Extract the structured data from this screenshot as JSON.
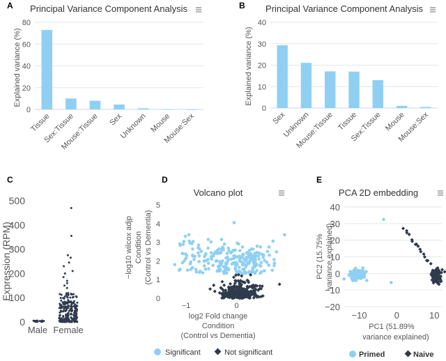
{
  "colors": {
    "bar": "#8fd0f2",
    "significant": "#8fd0f2",
    "not_significant": "#2f3b4c",
    "primed": "#8fd0f2",
    "naive": "#2f3b4c",
    "scatter_c": "#2f3b4c"
  },
  "icons": {
    "menu": "hamburger-menu-icon"
  },
  "chart_data": [
    {
      "panel": "A",
      "type": "bar",
      "title": "Principal Variance Component Analysis",
      "ylabel": "Explained variance (%)",
      "xlabel": "",
      "ylim": [
        0,
        80
      ],
      "yticks": [
        0,
        20,
        40,
        60,
        80
      ],
      "categories": [
        "Tissue",
        "Sex:Tissue",
        "Mouse:Tissue",
        "Sex",
        "Unknown",
        "Mouse",
        "Mouse:Sex"
      ],
      "values": [
        73,
        10,
        8,
        4.5,
        1,
        0.2,
        0.1
      ]
    },
    {
      "panel": "B",
      "type": "bar",
      "title": "Principal Variance Component Analysis",
      "ylabel": "Explained variance (%)",
      "xlabel": "",
      "ylim": [
        0,
        40
      ],
      "yticks": [
        0,
        10,
        20,
        30,
        40
      ],
      "categories": [
        "Sex",
        "Unknown",
        "Mouse:Tissue",
        "Tissue",
        "Sex:Tissue",
        "Mouse",
        "Mouse:Sex"
      ],
      "values": [
        29.3,
        21.1,
        17.1,
        17,
        13,
        1,
        0.5
      ]
    },
    {
      "panel": "C",
      "type": "scatter",
      "title": "",
      "ylabel": "Expression (RPM)",
      "xlabel": "",
      "ylim": [
        0,
        500
      ],
      "yticks": [
        0,
        100,
        200,
        300,
        400,
        500
      ],
      "categories": [
        "Male",
        "Female"
      ],
      "series": [
        {
          "name": "Male",
          "distribution": {
            "n": 20,
            "min": 0,
            "max": 6
          }
        },
        {
          "name": "Female",
          "distribution": {
            "n": 220,
            "min": 0,
            "max": 120,
            "outliers": [
              470,
              355,
              275,
              265,
              245,
              230,
              210,
              200,
              185,
              170,
              160,
              150,
              140
            ]
          }
        }
      ]
    },
    {
      "panel": "D",
      "type": "scatter",
      "title": "Volcano plot",
      "ylabel_lines": [
        "−log10 wilcox adjp",
        "Condition",
        "(Control vs Dementia)"
      ],
      "xlabel_lines": [
        "log2 Fold change",
        "Condition",
        "(Control vs Dementia)"
      ],
      "xlim": [
        -1.4,
        1.0
      ],
      "ylim": [
        0,
        5
      ],
      "xticks": [
        -1,
        0
      ],
      "yticks": [
        0,
        1,
        2,
        3,
        4,
        5
      ],
      "legend": [
        "Significant",
        "Not significant"
      ],
      "legend_position": "bottom",
      "series": [
        {
          "name": "Significant",
          "marker": "circle",
          "distribution": {
            "n": 260,
            "x_range": [
              -1.3,
              0.85
            ],
            "y_range": [
              1.3,
              3.3
            ]
          },
          "highlights": [
            [
              -0.05,
              4.05
            ],
            [
              0.95,
              3.4
            ]
          ]
        },
        {
          "name": "Not significant",
          "marker": "diamond",
          "distribution": {
            "n": 340,
            "x_range": [
              -0.45,
              0.6
            ],
            "y_range": [
              0,
              1.3
            ]
          },
          "highlights": [
            [
              0.85,
              0.75
            ]
          ]
        }
      ]
    },
    {
      "panel": "E",
      "type": "scatter",
      "title": "PCA 2D embedding",
      "xlabel_lines": [
        "PC1 (51.89%",
        "variance explained)"
      ],
      "ylabel_lines": [
        "PC2 (15.75%",
        "variance explained)"
      ],
      "xlim": [
        -14,
        12
      ],
      "ylim": [
        -20,
        40
      ],
      "xticks": [
        -10,
        0,
        10
      ],
      "yticks": [
        -20,
        -10,
        0,
        10,
        20,
        30,
        40
      ],
      "legend": [
        "Primed",
        "Naive"
      ],
      "legend_position": "bottom",
      "series": [
        {
          "name": "Primed",
          "marker": "circle",
          "distribution": {
            "n": 110,
            "x_center": -10.5,
            "y_center": -0.5,
            "x_spread": 2.2,
            "y_spread": 3.5
          },
          "highlights": [
            [
              -3.5,
              32.5
            ],
            [
              -1.5,
              -5.5
            ]
          ]
        },
        {
          "name": "Naive",
          "marker": "diamond",
          "distribution": {
            "n": 120,
            "x_center": 10.5,
            "y_center": -1.5,
            "x_spread": 1.3,
            "y_spread": 4
          },
          "trail_from": [
            2,
            27
          ]
        }
      ]
    }
  ]
}
